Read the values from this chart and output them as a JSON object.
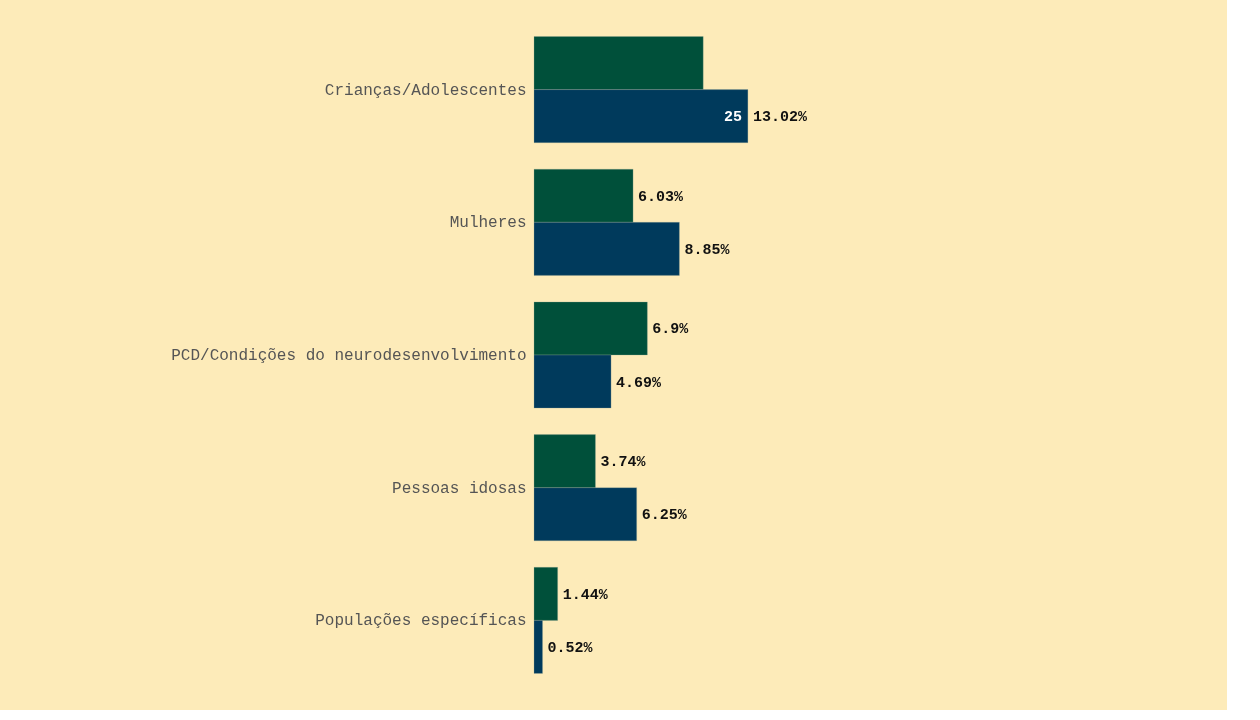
{
  "chart_data": {
    "type": "bar",
    "orientation": "horizontal",
    "categories": [
      "Crianças/Adolescentes",
      "Mulheres",
      "PCD/Condições do neurodesenvolvimento",
      "Pessoas idosas",
      "Populações específicas"
    ],
    "series": [
      {
        "color": "#00503a",
        "values": [
          10.3,
          6.03,
          6.9,
          3.74,
          1.44
        ],
        "value_labels": [
          null,
          "6.03%",
          "6.9%",
          "3.74%",
          "1.44%"
        ]
      },
      {
        "color": "#003a5c",
        "values": [
          13.02,
          8.85,
          4.69,
          6.25,
          0.52
        ],
        "value_labels": [
          "13.02%",
          "8.85%",
          "4.69%",
          "6.25%",
          "0.52%"
        ]
      }
    ],
    "annotations": [
      {
        "text": "25",
        "x": 13.02,
        "y": "Crianças/Adolescentes"
      }
    ],
    "grid": false,
    "legend": false
  }
}
